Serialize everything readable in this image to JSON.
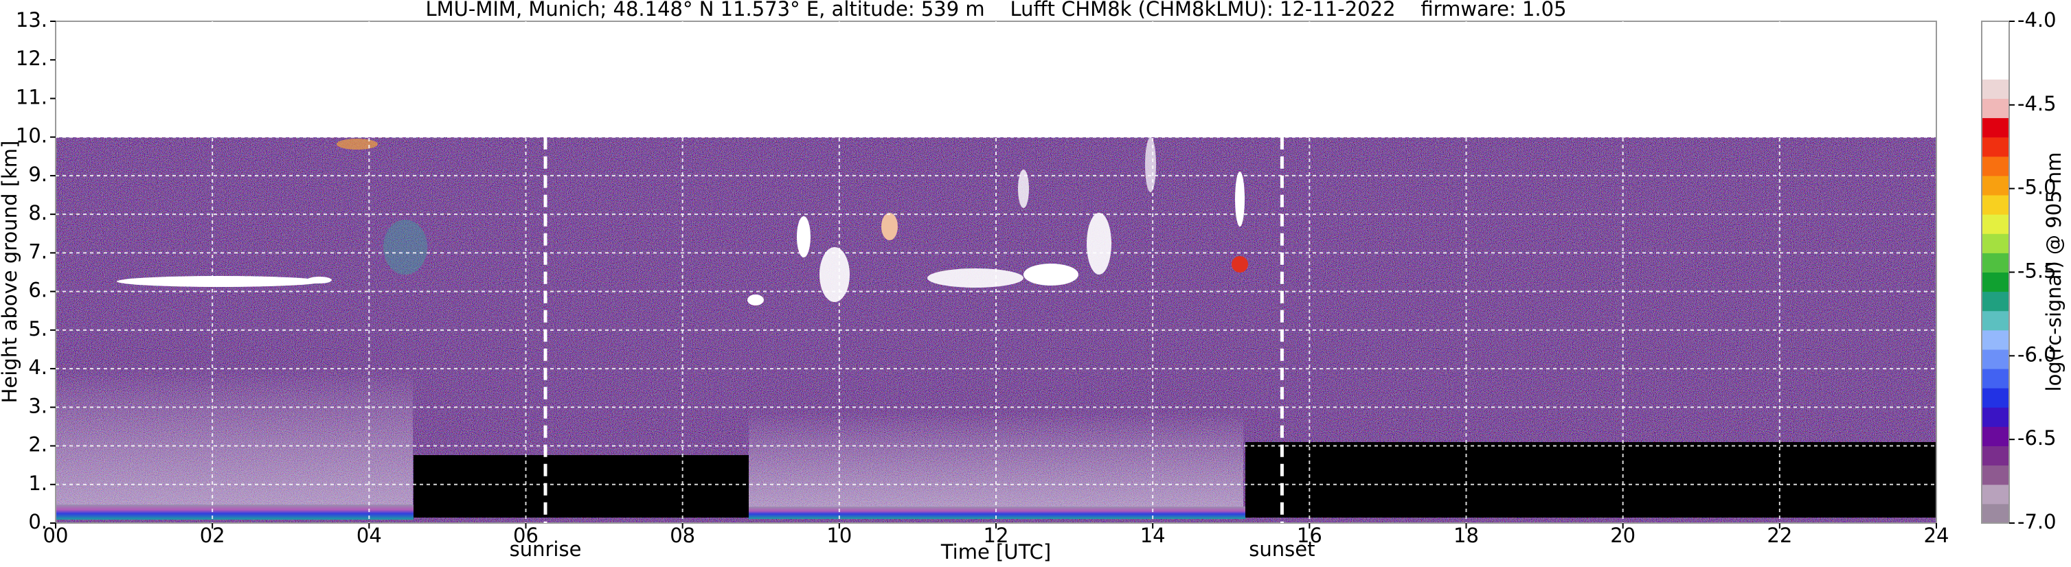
{
  "chart_data": {
    "type": "heatmap",
    "title": "LMU-MIM, Munich; 48.148° N 11.573° E, altitude: 539 m    Lufft CHM8k (CHM8kLMU): 12-11-2022    firmware: 1.05",
    "xlabel": "Time [UTC]",
    "ylabel": "Height above ground [km]",
    "xlim": [
      0,
      24
    ],
    "xticks": [
      {
        "value": 0,
        "label": "00"
      },
      {
        "value": 2,
        "label": "02"
      },
      {
        "value": 4,
        "label": "04"
      },
      {
        "value": 6,
        "label": "06"
      },
      {
        "value": 8,
        "label": "08"
      },
      10,
      12,
      14,
      16,
      18,
      20,
      22,
      24
    ],
    "ylim": [
      0,
      13
    ],
    "yticks": [
      {
        "value": 0,
        "label": "0."
      },
      {
        "value": 1,
        "label": "1."
      },
      {
        "value": 2,
        "label": "2."
      },
      {
        "value": 3,
        "label": "3."
      },
      {
        "value": 4,
        "label": "4."
      },
      {
        "value": 5,
        "label": "5."
      },
      {
        "value": 6,
        "label": "6."
      },
      {
        "value": 7,
        "label": "7."
      },
      {
        "value": 8,
        "label": "8."
      },
      {
        "value": 9,
        "label": "9."
      },
      {
        "value": 10,
        "label": "10."
      },
      {
        "value": 11,
        "label": "11."
      },
      {
        "value": 12,
        "label": "12."
      },
      {
        "value": 13,
        "label": "13."
      }
    ],
    "grid": true,
    "annotations": [
      {
        "label": "sunrise",
        "x": 6.25
      },
      {
        "label": "sunset",
        "x": 15.65
      }
    ],
    "colorbar": {
      "label": "log(rc-signal) @ 905 nm",
      "lim": [
        -7,
        -4
      ],
      "ticks": [
        {
          "value": -4,
          "label": "-4.0"
        },
        -4.5,
        {
          "value": -5,
          "label": "-5.0"
        },
        -5.5,
        {
          "value": -6,
          "label": "-6.0"
        },
        -6.5,
        {
          "value": -7,
          "label": "-7.0"
        }
      ],
      "colors": [
        "#9c8aa0",
        "#b8a2bc",
        "#8e5a90",
        "#7a2e8c",
        "#6a0a9c",
        "#3a14c4",
        "#2232e4",
        "#4262f2",
        "#6c90f8",
        "#94b8fc",
        "#5cc0c0",
        "#20a080",
        "#10a030",
        "#50c040",
        "#a4e040",
        "#e4f040",
        "#f8d020",
        "#f8a010",
        "#f87010",
        "#f03010",
        "#e00010",
        "#f0b8b8",
        "#ecd6d6",
        "#ffffff",
        "#ffffff",
        "#ffffff"
      ]
    }
  }
}
